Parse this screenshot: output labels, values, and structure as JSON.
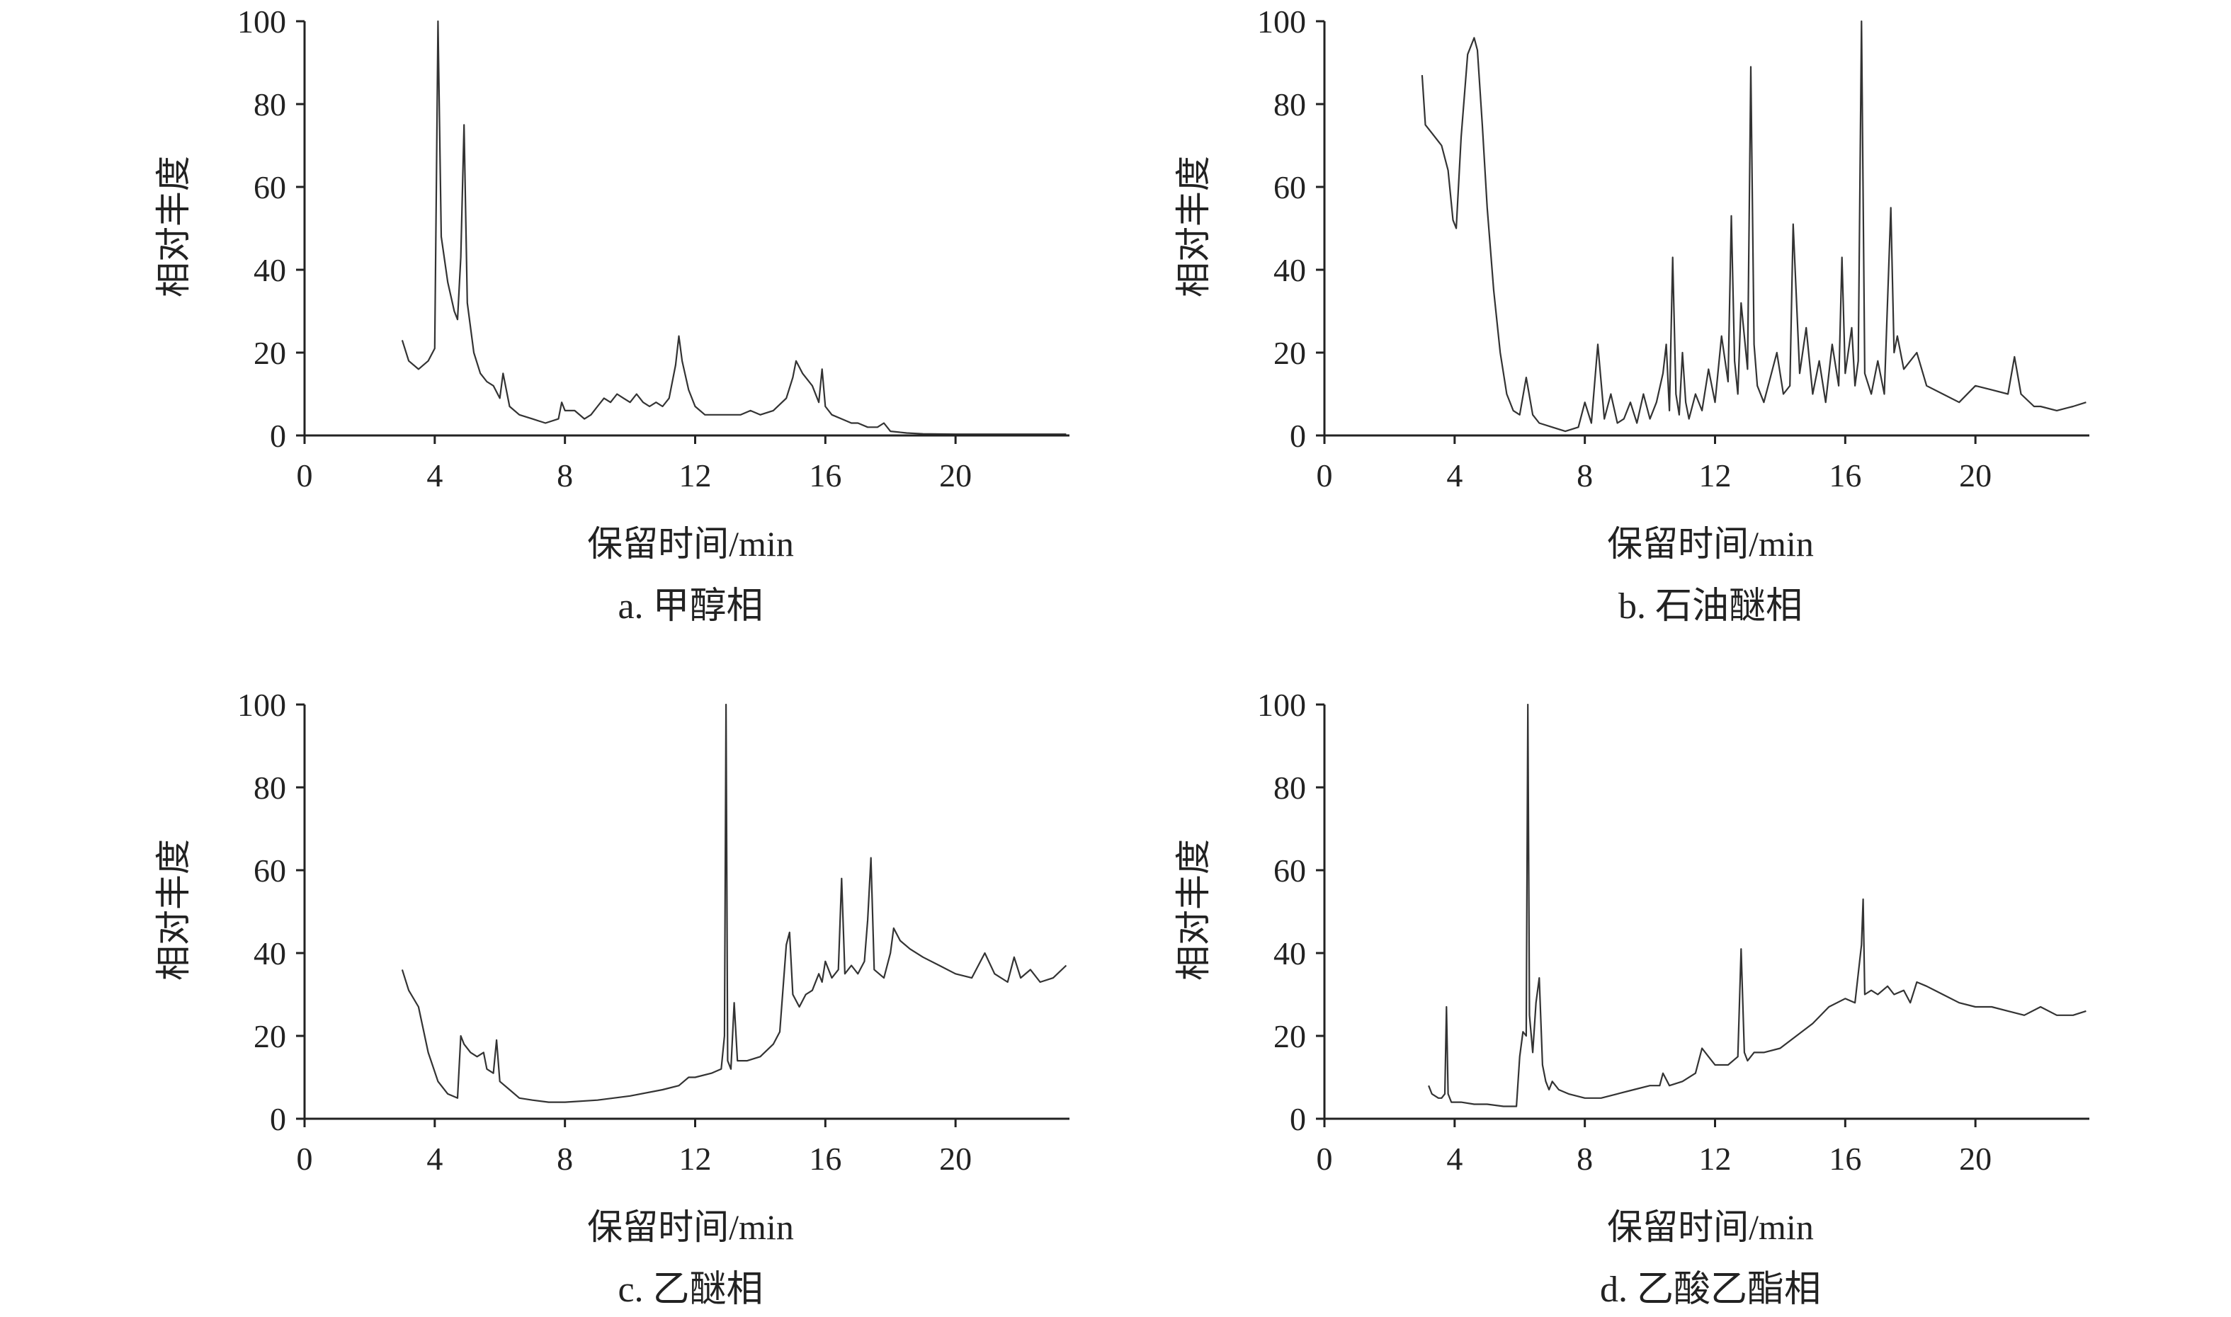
{
  "colors": {
    "axis": "#222222",
    "trace": "#333333",
    "background": "#ffffff"
  },
  "chart_data": [
    {
      "type": "line",
      "caption": "a. 甲醇相",
      "xlabel": "保留时间/min",
      "ylabel": "相对丰度",
      "xlim": [
        0,
        23.5
      ],
      "ylim": [
        0,
        100
      ],
      "xticks": [
        0,
        4,
        8,
        12,
        16,
        20
      ],
      "yticks": [
        0,
        20,
        40,
        60,
        80,
        100
      ],
      "grid": false,
      "series": [
        {
          "x": [
            3.0,
            3.2,
            3.5,
            3.8,
            4.0,
            4.05,
            4.1,
            4.2,
            4.4,
            4.6,
            4.7,
            4.8,
            4.9,
            5.0,
            5.2,
            5.4,
            5.6,
            5.8,
            6.0,
            6.1,
            6.3,
            6.6,
            7.0,
            7.4,
            7.8,
            7.9,
            8.0,
            8.3,
            8.6,
            8.8,
            9.0,
            9.2,
            9.4,
            9.6,
            9.8,
            10.0,
            10.2,
            10.4,
            10.6,
            10.8,
            11.0,
            11.2,
            11.4,
            11.5,
            11.6,
            11.8,
            12.0,
            12.3,
            12.6,
            13.0,
            13.4,
            13.7,
            14.0,
            14.4,
            14.8,
            15.0,
            15.1,
            15.3,
            15.6,
            15.8,
            15.9,
            16.0,
            16.2,
            16.5,
            16.8,
            17.0,
            17.3,
            17.6,
            17.8,
            18.0,
            18.5,
            19.0,
            20.0,
            21.0,
            22.0,
            23.0,
            23.4
          ],
          "y": [
            23,
            18,
            16,
            18,
            21,
            60,
            100,
            48,
            37,
            30,
            28,
            43,
            75,
            32,
            20,
            15,
            13,
            12,
            9,
            15,
            7,
            5,
            4,
            3,
            4,
            8,
            6,
            6,
            4,
            5,
            7,
            9,
            8,
            10,
            9,
            8,
            10,
            8,
            7,
            8,
            7,
            9,
            17,
            24,
            18,
            11,
            7,
            5,
            5,
            5,
            5,
            6,
            5,
            6,
            9,
            14,
            18,
            15,
            12,
            8,
            16,
            7,
            5,
            4,
            3,
            3,
            2,
            2,
            3,
            1,
            0.6,
            0.4,
            0.3,
            0.3,
            0.3,
            0.3,
            0.3
          ]
        }
      ]
    },
    {
      "type": "line",
      "caption": "b. 石油醚相",
      "xlabel": "保留时间/min",
      "ylabel": "相对丰度",
      "xlim": [
        0,
        23.5
      ],
      "ylim": [
        0,
        100
      ],
      "xticks": [
        0,
        4,
        8,
        12,
        16,
        20
      ],
      "yticks": [
        0,
        20,
        40,
        60,
        80,
        100
      ],
      "grid": false,
      "series": [
        {
          "x": [
            3.0,
            3.1,
            3.3,
            3.6,
            3.8,
            3.95,
            4.05,
            4.2,
            4.4,
            4.6,
            4.7,
            4.85,
            5.0,
            5.2,
            5.4,
            5.6,
            5.8,
            6.0,
            6.2,
            6.4,
            6.6,
            7.0,
            7.4,
            7.8,
            8.0,
            8.2,
            8.4,
            8.6,
            8.8,
            9.0,
            9.2,
            9.4,
            9.6,
            9.8,
            10.0,
            10.2,
            10.4,
            10.5,
            10.6,
            10.7,
            10.8,
            10.9,
            11.0,
            11.1,
            11.2,
            11.4,
            11.6,
            11.8,
            12.0,
            12.2,
            12.4,
            12.5,
            12.6,
            12.7,
            12.8,
            13.0,
            13.1,
            13.2,
            13.3,
            13.5,
            13.7,
            13.9,
            14.1,
            14.3,
            14.4,
            14.6,
            14.8,
            15.0,
            15.2,
            15.4,
            15.6,
            15.8,
            15.9,
            16.0,
            16.2,
            16.3,
            16.4,
            16.5,
            16.6,
            16.8,
            17.0,
            17.2,
            17.4,
            17.5,
            17.6,
            17.8,
            18.0,
            18.2,
            18.5,
            19.0,
            19.5,
            20.0,
            20.5,
            21.0,
            21.2,
            21.4,
            21.8,
            22.0,
            22.5,
            23.0,
            23.4
          ],
          "y": [
            87,
            75,
            73,
            70,
            64,
            52,
            50,
            72,
            92,
            96,
            93,
            75,
            55,
            35,
            20,
            10,
            6,
            5,
            14,
            5,
            3,
            2,
            1,
            2,
            8,
            3,
            22,
            4,
            10,
            3,
            4,
            8,
            3,
            10,
            4,
            8,
            15,
            22,
            6,
            43,
            10,
            5,
            20,
            8,
            4,
            10,
            6,
            16,
            8,
            24,
            13,
            53,
            18,
            10,
            32,
            16,
            89,
            22,
            12,
            8,
            14,
            20,
            10,
            12,
            51,
            15,
            26,
            10,
            18,
            8,
            22,
            12,
            43,
            15,
            26,
            12,
            18,
            100,
            15,
            10,
            18,
            10,
            55,
            20,
            24,
            16,
            18,
            20,
            12,
            10,
            8,
            12,
            11,
            10,
            19,
            10,
            7,
            7,
            6,
            7,
            8
          ]
        }
      ]
    },
    {
      "type": "line",
      "caption": "c. 乙醚相",
      "xlabel": "保留时间/min",
      "ylabel": "相对丰度",
      "xlim": [
        0,
        23.5
      ],
      "ylim": [
        0,
        100
      ],
      "xticks": [
        0,
        4,
        8,
        12,
        16,
        20
      ],
      "yticks": [
        0,
        20,
        40,
        60,
        80,
        100
      ],
      "grid": false,
      "series": [
        {
          "x": [
            3.0,
            3.2,
            3.5,
            3.8,
            4.1,
            4.4,
            4.7,
            4.8,
            4.9,
            5.1,
            5.3,
            5.5,
            5.6,
            5.8,
            5.9,
            6.0,
            6.3,
            6.6,
            7.0,
            7.5,
            8.0,
            9.0,
            10.0,
            11.0,
            11.5,
            11.8,
            12.0,
            12.5,
            12.8,
            12.9,
            12.95,
            13.0,
            13.1,
            13.2,
            13.3,
            13.6,
            14.0,
            14.4,
            14.6,
            14.8,
            14.9,
            15.0,
            15.2,
            15.4,
            15.6,
            15.8,
            15.9,
            16.0,
            16.2,
            16.4,
            16.5,
            16.6,
            16.8,
            17.0,
            17.2,
            17.3,
            17.4,
            17.5,
            17.8,
            18.0,
            18.1,
            18.3,
            18.6,
            19.0,
            19.5,
            20.0,
            20.5,
            20.9,
            21.2,
            21.6,
            21.8,
            22.0,
            22.3,
            22.6,
            23.0,
            23.4
          ],
          "y": [
            36,
            31,
            27,
            16,
            9,
            6,
            5,
            20,
            18,
            16,
            15,
            16,
            12,
            11,
            19,
            9,
            7,
            5,
            4.5,
            4,
            4,
            4.5,
            5.5,
            7,
            8,
            10,
            10,
            11,
            12,
            20,
            100,
            14,
            12,
            28,
            14,
            14,
            15,
            18,
            21,
            42,
            45,
            30,
            27,
            30,
            31,
            35,
            33,
            38,
            34,
            36,
            58,
            35,
            37,
            35,
            38,
            48,
            63,
            36,
            34,
            40,
            46,
            43,
            41,
            39,
            37,
            35,
            34,
            40,
            35,
            33,
            39,
            34,
            36,
            33,
            34,
            37
          ]
        }
      ]
    },
    {
      "type": "line",
      "caption": "d. 乙酸乙酯相",
      "xlabel": "保留时间/min",
      "ylabel": "相对丰度",
      "xlim": [
        0,
        23.5
      ],
      "ylim": [
        0,
        100
      ],
      "xticks": [
        0,
        4,
        8,
        12,
        16,
        20
      ],
      "yticks": [
        0,
        20,
        40,
        60,
        80,
        100
      ],
      "grid": false,
      "series": [
        {
          "x": [
            3.2,
            3.3,
            3.5,
            3.6,
            3.7,
            3.75,
            3.8,
            3.9,
            4.2,
            4.6,
            5.0,
            5.5,
            5.9,
            6.0,
            6.1,
            6.2,
            6.25,
            6.3,
            6.4,
            6.5,
            6.6,
            6.7,
            6.8,
            6.9,
            7.0,
            7.2,
            7.5,
            8.0,
            8.5,
            9.0,
            9.5,
            10.0,
            10.3,
            10.4,
            10.6,
            11.0,
            11.4,
            11.6,
            11.8,
            12.0,
            12.4,
            12.7,
            12.8,
            12.9,
            13.0,
            13.2,
            13.5,
            14.0,
            14.5,
            15.0,
            15.5,
            16.0,
            16.3,
            16.5,
            16.55,
            16.6,
            16.8,
            17.0,
            17.3,
            17.5,
            17.8,
            18.0,
            18.2,
            18.5,
            19.0,
            19.5,
            20.0,
            20.5,
            21.0,
            21.5,
            22.0,
            22.5,
            23.0,
            23.4
          ],
          "y": [
            8,
            6,
            5,
            5,
            6,
            27,
            6,
            4,
            4,
            3.5,
            3.5,
            3,
            3,
            15,
            21,
            20,
            100,
            25,
            16,
            28,
            34,
            13,
            9,
            7,
            9,
            7,
            6,
            5,
            5,
            6,
            7,
            8,
            8,
            11,
            8,
            9,
            11,
            17,
            15,
            13,
            13,
            15,
            41,
            16,
            14,
            16,
            16,
            17,
            20,
            23,
            27,
            29,
            28,
            42,
            53,
            30,
            31,
            30,
            32,
            30,
            31,
            28,
            33,
            32,
            30,
            28,
            27,
            27,
            26,
            25,
            27,
            25,
            25,
            26
          ]
        }
      ]
    }
  ]
}
